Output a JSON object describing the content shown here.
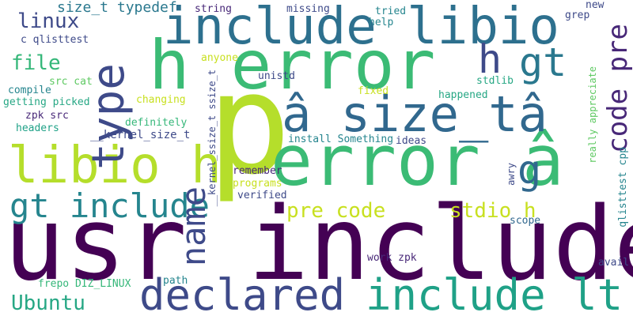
{
  "words": [
    {
      "id": "p",
      "text": "p",
      "color": "#b5de2b"
    },
    {
      "id": "usr_include",
      "text": "usr include",
      "color": "#440154"
    },
    {
      "id": "h_error",
      "text": "h error",
      "color": "#3bbb75"
    },
    {
      "id": "include_libio",
      "text": "include libio",
      "color": "#2d708e"
    },
    {
      "id": "error_a",
      "text": "error â",
      "color": "#3bbb75"
    },
    {
      "id": "a_size_ta",
      "text": "â size_tâ",
      "color": "#31688e"
    },
    {
      "id": "libio_h",
      "text": "libio h",
      "color": "#b5de2b"
    },
    {
      "id": "declared",
      "text": "declared",
      "color": "#3e4a89"
    },
    {
      "id": "include_lt",
      "text": "include lt",
      "color": "#1fa187"
    },
    {
      "id": "gt_include",
      "text": "gt include",
      "color": "#25858e"
    },
    {
      "id": "name",
      "text": "name",
      "color": "#3e4a89"
    },
    {
      "id": "type",
      "text": "type",
      "color": "#3e4a89"
    },
    {
      "id": "gt",
      "text": "gt",
      "color": "#2a788e"
    },
    {
      "id": "h_right",
      "text": "h",
      "color": "#3e4a89"
    },
    {
      "id": "code_pre",
      "text": "code pre",
      "color": "#482878"
    },
    {
      "id": "g",
      "text": "g",
      "color": "#31688e"
    },
    {
      "id": "pre_code",
      "text": "pre code",
      "color": "#c8e020"
    },
    {
      "id": "stdio_h",
      "text": "stdio h",
      "color": "#c8e020"
    },
    {
      "id": "ubuntu",
      "text": "Ubuntu",
      "color": "#26a784"
    },
    {
      "id": "linux",
      "text": "linux",
      "color": "#3e4a89"
    },
    {
      "id": "file",
      "text": "file",
      "color": "#35b779"
    },
    {
      "id": "size_t_typedef",
      "text": "size_t typedef",
      "color": "#2a788e"
    },
    {
      "id": "c_qlisttest",
      "text": "c qlisttest",
      "color": "#3e4a89"
    },
    {
      "id": "string",
      "text": "string",
      "color": "#482878"
    },
    {
      "id": "missing",
      "text": "missing",
      "color": "#3e4a89"
    },
    {
      "id": "tried",
      "text": "tried",
      "color": "#25858e"
    },
    {
      "id": "help",
      "text": "help",
      "color": "#25858e"
    },
    {
      "id": "new",
      "text": "new",
      "color": "#3e4a89"
    },
    {
      "id": "grep",
      "text": "grep",
      "color": "#3e4a89"
    },
    {
      "id": "anyone",
      "text": "anyone",
      "color": "#c8e020"
    },
    {
      "id": "kernel_ssize",
      "text": "__kernel_ssize_t ssize_t",
      "color": "#3e4a89"
    },
    {
      "id": "unistd",
      "text": "unistd",
      "color": "#3e4a89"
    },
    {
      "id": "stdlib",
      "text": "stdlib",
      "color": "#26a784"
    },
    {
      "id": "really_appreciate",
      "text": "really appreciate",
      "color": "#5ec962"
    },
    {
      "id": "compile",
      "text": "compile",
      "color": "#25858e"
    },
    {
      "id": "src_cat",
      "text": "src cat",
      "color": "#5ec962"
    },
    {
      "id": "getting_picked",
      "text": "getting picked",
      "color": "#26a784"
    },
    {
      "id": "changing",
      "text": "changing",
      "color": "#c8e020"
    },
    {
      "id": "fixed",
      "text": "fixed",
      "color": "#c8e020"
    },
    {
      "id": "happened",
      "text": "happened",
      "color": "#26a784"
    },
    {
      "id": "zpk_src",
      "text": "zpk src",
      "color": "#482878"
    },
    {
      "id": "definitely",
      "text": "definitely",
      "color": "#35b779"
    },
    {
      "id": "headers",
      "text": "headers",
      "color": "#1fa187"
    },
    {
      "id": "kernel_size",
      "text": "__kernel_size_t",
      "color": "#3e4a89"
    },
    {
      "id": "install_something",
      "text": "install Something",
      "color": "#25858e"
    },
    {
      "id": "ideas",
      "text": "ideas",
      "color": "#3e4a89"
    },
    {
      "id": "remember",
      "text": "remember",
      "color": "#482878"
    },
    {
      "id": "programs",
      "text": "programs",
      "color": "#c8e020"
    },
    {
      "id": "verified",
      "text": "verified",
      "color": "#3e4a89"
    },
    {
      "id": "awry",
      "text": "awry",
      "color": "#3e4a89"
    },
    {
      "id": "qlisttest_cpp",
      "text": "qlisttest cpp",
      "color": "#25858e"
    },
    {
      "id": "scope",
      "text": "scope",
      "color": "#31688e"
    },
    {
      "id": "work_zpk",
      "text": "work zpk",
      "color": "#482878"
    },
    {
      "id": "avail",
      "text": "avail",
      "color": "#3e4a89"
    },
    {
      "id": "frepo",
      "text": "frepo DIZ_LINUX",
      "color": "#35b779"
    },
    {
      "id": "path",
      "text": "path",
      "color": "#25858e"
    }
  ]
}
